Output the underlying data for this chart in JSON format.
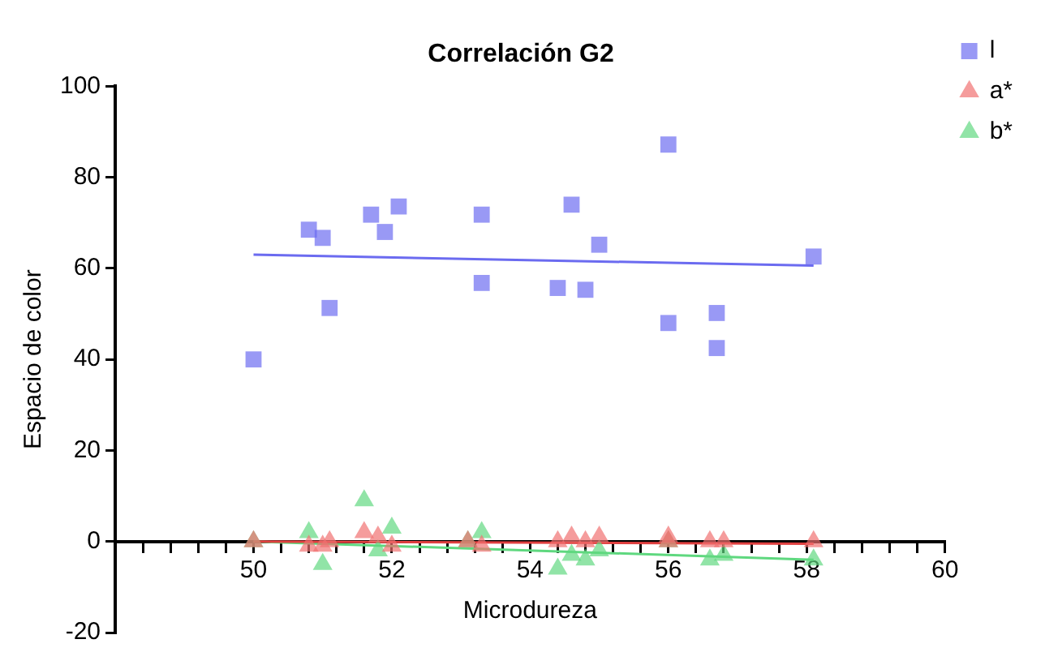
{
  "chart_data": {
    "type": "scatter",
    "title": "Correlación G2",
    "xlabel": "Microdureza",
    "ylabel": "Espacio de color",
    "xlim": [
      48,
      60
    ],
    "ylim": [
      -20,
      100
    ],
    "xticks": [
      {
        "value": 48.4,
        "label": null
      },
      {
        "value": 48.8,
        "label": null
      },
      {
        "value": 49.2,
        "label": null
      },
      {
        "value": 49.6,
        "label": null
      },
      50,
      {
        "value": 50.4,
        "label": null
      },
      {
        "value": 50.8,
        "label": null
      },
      {
        "value": 51.2,
        "label": null
      },
      {
        "value": 51.6,
        "label": null
      },
      52,
      {
        "value": 52.4,
        "label": null
      },
      {
        "value": 52.8,
        "label": null
      },
      {
        "value": 53.2,
        "label": null
      },
      {
        "value": 53.6,
        "label": null
      },
      54,
      {
        "value": 54.4,
        "label": null
      },
      {
        "value": 54.8,
        "label": null
      },
      {
        "value": 55.2,
        "label": null
      },
      {
        "value": 55.6,
        "label": null
      },
      56,
      {
        "value": 56.4,
        "label": null
      },
      {
        "value": 56.8,
        "label": null
      },
      {
        "value": 57.2,
        "label": null
      },
      {
        "value": 57.6,
        "label": null
      },
      58,
      {
        "value": 58.4,
        "label": null
      },
      {
        "value": 58.8,
        "label": null
      },
      {
        "value": 59.2,
        "label": null
      },
      {
        "value": 59.6,
        "label": null
      },
      60
    ],
    "yticks": [
      -20,
      0,
      20,
      40,
      60,
      80,
      100
    ],
    "grid": false,
    "legend": "top right",
    "series": [
      {
        "name": "l",
        "color": "#6b6bf0",
        "marker": "square",
        "x": [
          50,
          50.8,
          51.0,
          51.1,
          51.7,
          51.9,
          52.1,
          53.3,
          53.3,
          54.4,
          54.6,
          54.8,
          55.0,
          56.0,
          56.0,
          56.7,
          56.7,
          58.1
        ],
        "values": [
          40,
          68.5,
          66.7,
          51.3,
          71.8,
          68,
          73.6,
          56.8,
          71.8,
          55.7,
          74,
          55.3,
          65.2,
          87.2,
          48,
          42.5,
          50.2,
          62.6
        ]
      },
      {
        "name": "a*",
        "color": "#f07070",
        "marker": "triangle",
        "x": [
          50,
          50.8,
          51.0,
          51.1,
          51.6,
          51.8,
          52.0,
          53.1,
          53.3,
          54.4,
          54.6,
          54.8,
          55.0,
          56.0,
          56.0,
          56.6,
          56.8,
          58.1
        ],
        "values": [
          0,
          -1,
          -1,
          0,
          2,
          1,
          -1,
          0,
          -1,
          0,
          1,
          0,
          1,
          0,
          1,
          0,
          0,
          0
        ]
      },
      {
        "name": "b*",
        "color": "#5fd87f",
        "marker": "triangle",
        "x": [
          50,
          50.8,
          51.0,
          51.6,
          51.8,
          52.0,
          53.1,
          53.3,
          54.4,
          54.6,
          54.8,
          55.0,
          56.0,
          56.6,
          56.8,
          58.1
        ],
        "values": [
          0,
          2,
          -5,
          9,
          -2,
          3,
          0,
          2,
          -6,
          -3,
          -4,
          -2,
          0,
          -4,
          -3,
          -4
        ]
      },
      {
        "type": "line",
        "color": "#6b6bf0",
        "marker": "none",
        "x": [
          50,
          58.1
        ],
        "values": [
          63,
          60.6
        ]
      },
      {
        "type": "line",
        "color": "#e04040",
        "marker": "none",
        "x": [
          50,
          58.1
        ],
        "values": [
          0,
          -0.5
        ]
      },
      {
        "type": "line",
        "color": "#5fd87f",
        "marker": "none",
        "x": [
          50,
          58.1
        ],
        "values": [
          0,
          -4
        ]
      }
    ]
  }
}
